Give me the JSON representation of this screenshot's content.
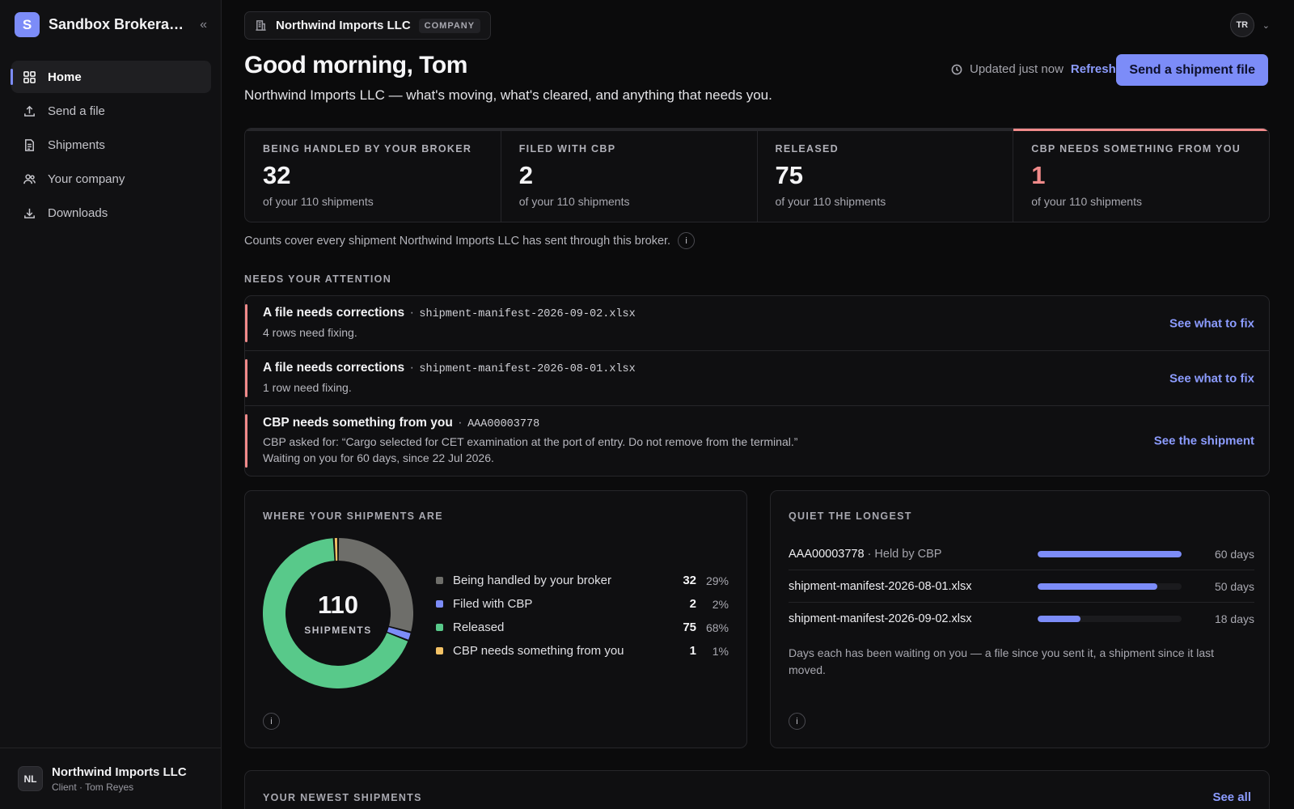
{
  "sidebar": {
    "brand_initial": "S",
    "brand_name": "Sandbox Brokerage",
    "items": [
      {
        "label": "Home",
        "icon": "grid-icon"
      },
      {
        "label": "Send a file",
        "icon": "upload-icon"
      },
      {
        "label": "Shipments",
        "icon": "document-icon"
      },
      {
        "label": "Your company",
        "icon": "users-icon"
      },
      {
        "label": "Downloads",
        "icon": "download-icon"
      }
    ],
    "footer": {
      "initials": "NL",
      "name": "Northwind Imports LLC",
      "sub": "Client · Tom Reyes"
    }
  },
  "header": {
    "company_name": "Northwind Imports LLC",
    "company_tag": "COMPANY",
    "user_initials": "TR",
    "greeting": "Good morning, Tom",
    "subtitle": "Northwind Imports LLC — what's moving, what's cleared, and anything that needs you.",
    "updated": "Updated just now",
    "refresh": "Refresh",
    "send_button": "Send a shipment file"
  },
  "stats": [
    {
      "label": "BEING HANDLED BY YOUR BROKER",
      "value": "32",
      "sub": "of your 110 shipments"
    },
    {
      "label": "FILED WITH CBP",
      "value": "2",
      "sub": "of your 110 shipments"
    },
    {
      "label": "RELEASED",
      "value": "75",
      "sub": "of your 110 shipments"
    },
    {
      "label": "CBP NEEDS SOMETHING FROM YOU",
      "value": "1",
      "sub": "of your 110 shipments"
    }
  ],
  "counts_note": "Counts cover every shipment Northwind Imports LLC has sent through this broker.",
  "attention": {
    "label": "NEEDS YOUR ATTENTION",
    "rows": [
      {
        "title": "A file needs corrections",
        "ref": "shipment-manifest-2026-09-02.xlsx",
        "desc": "4 rows need fixing.",
        "action": "See what to fix"
      },
      {
        "title": "A file needs corrections",
        "ref": "shipment-manifest-2026-08-01.xlsx",
        "desc": "1 row need fixing.",
        "action": "See what to fix"
      },
      {
        "title": "CBP needs something from you",
        "ref": "AAA00003778",
        "desc": "CBP asked for: “Cargo selected for CET examination at the port of entry. Do not remove from the terminal.”",
        "desc2": "Waiting on you for 60 days, since 22 Jul 2026.",
        "action": "See the shipment"
      }
    ]
  },
  "where": {
    "label": "WHERE YOUR SHIPMENTS ARE",
    "total": "110",
    "total_label": "SHIPMENTS",
    "legend": [
      {
        "name": "Being handled by your broker",
        "count": "32",
        "pct": "29%",
        "value": 32,
        "color": "#6e6e6a"
      },
      {
        "name": "Filed with CBP",
        "count": "2",
        "pct": "2%",
        "value": 2,
        "color": "#7c8cf8"
      },
      {
        "name": "Released",
        "count": "75",
        "pct": "68%",
        "value": 75,
        "color": "#58c98a"
      },
      {
        "name": "CBP needs something from you",
        "count": "1",
        "pct": "1%",
        "value": 1,
        "color": "#f3c266"
      }
    ]
  },
  "quiet": {
    "label": "QUIET THE LONGEST",
    "rows": [
      {
        "name": "AAA00003778",
        "extra": " · Held by CBP",
        "days": "60 days",
        "fraction": 1.0
      },
      {
        "name": "shipment-manifest-2026-08-01.xlsx",
        "extra": "",
        "days": "50 days",
        "fraction": 0.83
      },
      {
        "name": "shipment-manifest-2026-09-02.xlsx",
        "extra": "",
        "days": "18 days",
        "fraction": 0.3
      }
    ],
    "note": "Days each has been waiting on you — a file since you sent it, a shipment since it last moved."
  },
  "newest": {
    "label": "YOUR NEWEST SHIPMENTS",
    "see_all": "See all"
  },
  "info_glyph": "i"
}
